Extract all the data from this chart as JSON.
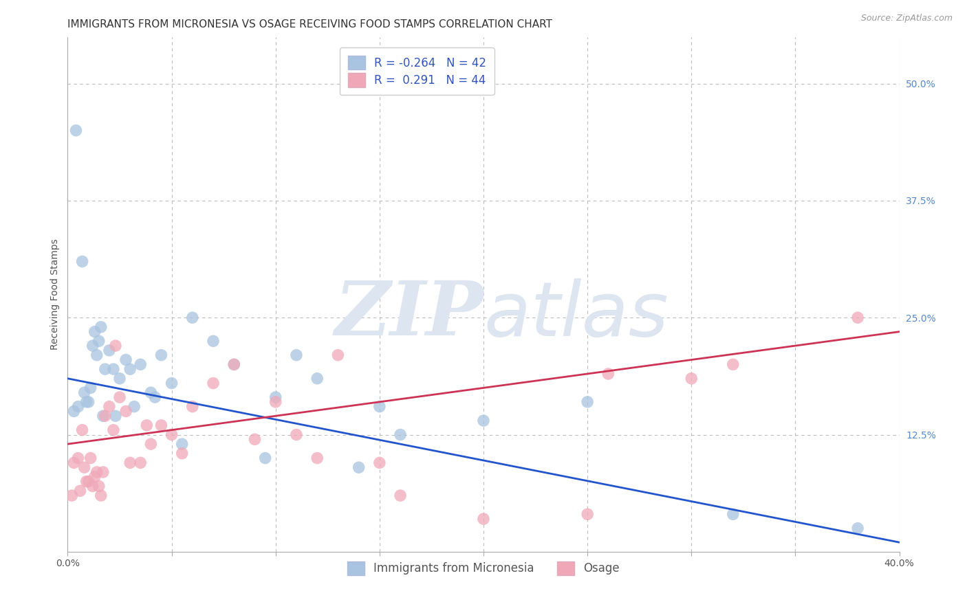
{
  "title": "IMMIGRANTS FROM MICRONESIA VS OSAGE RECEIVING FOOD STAMPS CORRELATION CHART",
  "source": "Source: ZipAtlas.com",
  "ylabel": "Receiving Food Stamps",
  "xlim": [
    0.0,
    0.4
  ],
  "ylim": [
    0.0,
    0.55
  ],
  "blue_R": -0.264,
  "blue_N": 42,
  "pink_R": 0.291,
  "pink_N": 44,
  "blue_label": "Immigrants from Micronesia",
  "pink_label": "Osage",
  "blue_color": "#a8c4e0",
  "pink_color": "#f0a8b8",
  "blue_line_color": "#2255cc",
  "pink_line_color": "#cc3355",
  "background_color": "#ffffff",
  "grid_color": "#bbbbbb",
  "watermark_color": "#dde5f0",
  "blue_line_x0": 0.0,
  "blue_line_y0": 0.185,
  "blue_line_x1": 0.4,
  "blue_line_y1": 0.01,
  "pink_line_x0": 0.0,
  "pink_line_y0": 0.115,
  "pink_line_x1": 0.4,
  "pink_line_y1": 0.235,
  "blue_x": [
    0.004,
    0.007,
    0.008,
    0.01,
    0.011,
    0.012,
    0.013,
    0.014,
    0.015,
    0.016,
    0.018,
    0.02,
    0.022,
    0.025,
    0.028,
    0.03,
    0.035,
    0.04,
    0.045,
    0.05,
    0.06,
    0.07,
    0.08,
    0.1,
    0.11,
    0.12,
    0.15,
    0.16,
    0.2,
    0.25,
    0.003,
    0.005,
    0.009,
    0.017,
    0.023,
    0.032,
    0.042,
    0.055,
    0.095,
    0.14,
    0.32,
    0.38
  ],
  "blue_y": [
    0.45,
    0.31,
    0.17,
    0.16,
    0.175,
    0.22,
    0.235,
    0.21,
    0.225,
    0.24,
    0.195,
    0.215,
    0.195,
    0.185,
    0.205,
    0.195,
    0.2,
    0.17,
    0.21,
    0.18,
    0.25,
    0.225,
    0.2,
    0.165,
    0.21,
    0.185,
    0.155,
    0.125,
    0.14,
    0.16,
    0.15,
    0.155,
    0.16,
    0.145,
    0.145,
    0.155,
    0.165,
    0.115,
    0.1,
    0.09,
    0.04,
    0.025
  ],
  "pink_x": [
    0.003,
    0.005,
    0.007,
    0.008,
    0.009,
    0.01,
    0.011,
    0.012,
    0.013,
    0.014,
    0.015,
    0.016,
    0.017,
    0.018,
    0.02,
    0.022,
    0.025,
    0.028,
    0.03,
    0.035,
    0.04,
    0.045,
    0.05,
    0.06,
    0.07,
    0.08,
    0.09,
    0.1,
    0.11,
    0.12,
    0.15,
    0.16,
    0.2,
    0.25,
    0.3,
    0.32,
    0.002,
    0.006,
    0.023,
    0.038,
    0.055,
    0.13,
    0.26,
    0.38
  ],
  "pink_y": [
    0.095,
    0.1,
    0.13,
    0.09,
    0.075,
    0.075,
    0.1,
    0.07,
    0.08,
    0.085,
    0.07,
    0.06,
    0.085,
    0.145,
    0.155,
    0.13,
    0.165,
    0.15,
    0.095,
    0.095,
    0.115,
    0.135,
    0.125,
    0.155,
    0.18,
    0.2,
    0.12,
    0.16,
    0.125,
    0.1,
    0.095,
    0.06,
    0.035,
    0.04,
    0.185,
    0.2,
    0.06,
    0.065,
    0.22,
    0.135,
    0.105,
    0.21,
    0.19,
    0.25
  ],
  "title_fontsize": 11,
  "axis_label_fontsize": 10,
  "tick_fontsize": 10,
  "legend_fontsize": 12
}
